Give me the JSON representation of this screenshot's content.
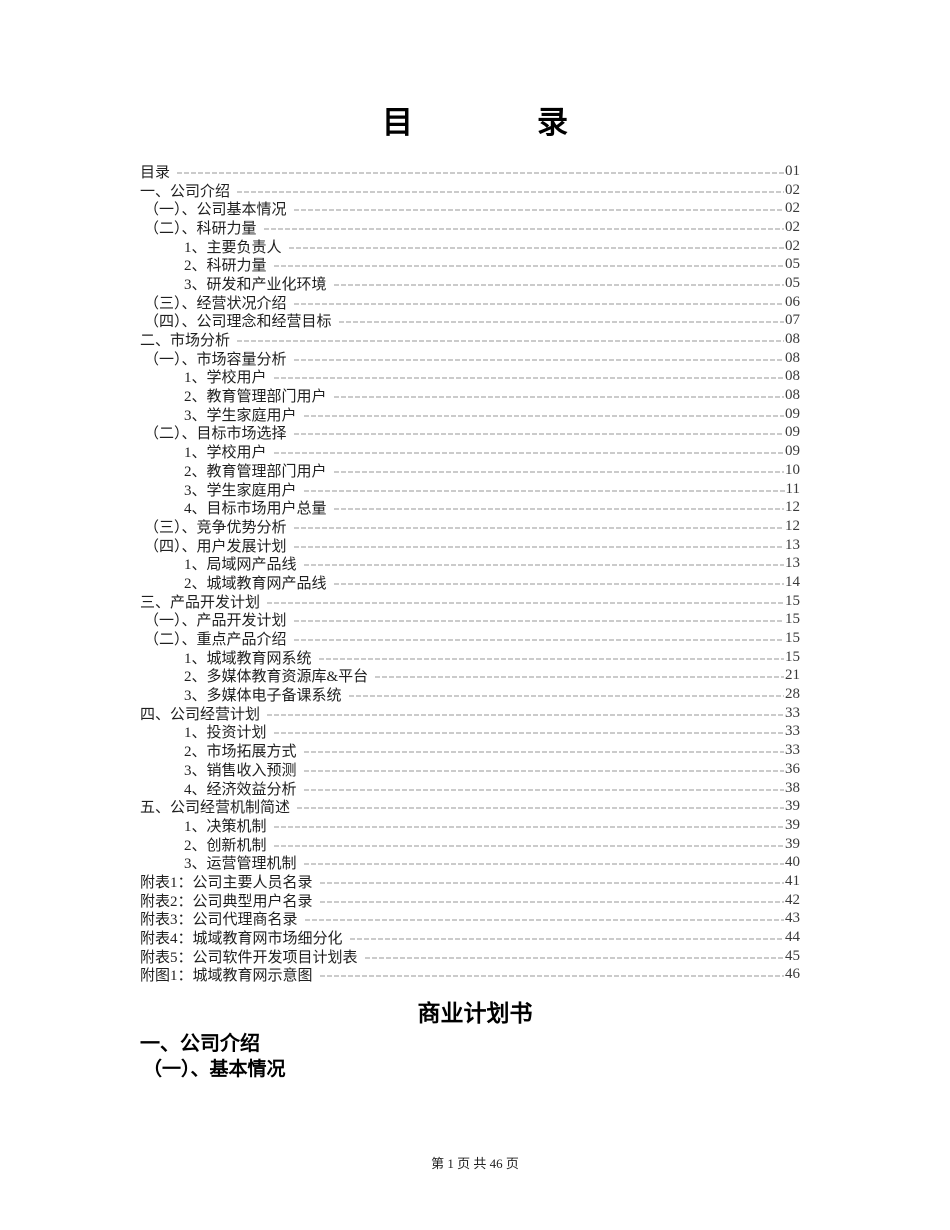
{
  "document": {
    "toc_title": "目　　　　录",
    "body_heading": "商业计划书",
    "section_heading_1": "一、公司介绍",
    "section_heading_2": "（一）、基本情况",
    "footer_text": "第 1 页 共 46 页"
  },
  "toc": {
    "entries": [
      {
        "label": "目录",
        "page": "01",
        "level": 0
      },
      {
        "label": "一、公司介绍",
        "page": "02",
        "level": 0
      },
      {
        "label": "（一）、公司基本情况",
        "page": "02",
        "level": 1
      },
      {
        "label": "（二）、科研力量",
        "page": "02",
        "level": 1
      },
      {
        "label": "1、主要负责人",
        "page": "02",
        "level": 2
      },
      {
        "label": "2、科研力量",
        "page": "05",
        "level": 2
      },
      {
        "label": "3、研发和产业化环境",
        "page": "05",
        "level": 2
      },
      {
        "label": "（三）、经营状况介绍",
        "page": "06",
        "level": 1
      },
      {
        "label": "（四）、公司理念和经营目标",
        "page": "07",
        "level": 1
      },
      {
        "label": "二、市场分析",
        "page": "08",
        "level": 0
      },
      {
        "label": "（一）、市场容量分析",
        "page": "08",
        "level": 1
      },
      {
        "label": "1、学校用户",
        "page": "08",
        "level": 2
      },
      {
        "label": "2、教育管理部门用户",
        "page": "08",
        "level": 2
      },
      {
        "label": "3、学生家庭用户",
        "page": "09",
        "level": 2
      },
      {
        "label": "（二）、目标市场选择",
        "page": "09",
        "level": 1
      },
      {
        "label": "1、学校用户",
        "page": "09",
        "level": 2
      },
      {
        "label": "2、教育管理部门用户",
        "page": "10",
        "level": 2
      },
      {
        "label": "3、学生家庭用户",
        "page": "11",
        "level": 2
      },
      {
        "label": "4、目标市场用户总量",
        "page": "12",
        "level": 2
      },
      {
        "label": "（三）、竞争优势分析",
        "page": "12",
        "level": 1
      },
      {
        "label": "（四）、用户发展计划",
        "page": "13",
        "level": 1
      },
      {
        "label": "1、局域网产品线",
        "page": "13",
        "level": 2
      },
      {
        "label": "2、城域教育网产品线",
        "page": "14",
        "level": 2
      },
      {
        "label": "三、产品开发计划",
        "page": "15",
        "level": 0
      },
      {
        "label": "（一）、产品开发计划",
        "page": "15",
        "level": 1
      },
      {
        "label": "（二）、重点产品介绍",
        "page": "15",
        "level": 1
      },
      {
        "label": "1、城域教育网系统",
        "page": "15",
        "level": 2
      },
      {
        "label": "2、多媒体教育资源库&平台",
        "page": "21",
        "level": 2
      },
      {
        "label": "3、多媒体电子备课系统",
        "page": "28",
        "level": 2
      },
      {
        "label": "四、公司经营计划",
        "page": "33",
        "level": 0
      },
      {
        "label": "1、投资计划",
        "page": "33",
        "level": 2
      },
      {
        "label": "2、市场拓展方式",
        "page": "33",
        "level": 2
      },
      {
        "label": "3、销售收入预测",
        "page": "36",
        "level": 2
      },
      {
        "label": "4、经济效益分析",
        "page": "38",
        "level": 2
      },
      {
        "label": "五、公司经营机制简述",
        "page": "39",
        "level": 0
      },
      {
        "label": "1、决策机制",
        "page": "39",
        "level": 2
      },
      {
        "label": "2、创新机制",
        "page": "39",
        "level": 2
      },
      {
        "label": "3、运营管理机制",
        "page": "40",
        "level": 2
      },
      {
        "label": "附表1：公司主要人员名录",
        "page": "41",
        "level": 0
      },
      {
        "label": "附表2：公司典型用户名录",
        "page": "42",
        "level": 0
      },
      {
        "label": "附表3：公司代理商名录",
        "page": "43",
        "level": 0
      },
      {
        "label": "附表4：城域教育网市场细分化",
        "page": "44",
        "level": 0
      },
      {
        "label": "附表5：公司软件开发项目计划表",
        "page": "45",
        "level": 0
      },
      {
        "label": "附图1：城域教育网示意图",
        "page": "46",
        "level": 0
      }
    ]
  }
}
